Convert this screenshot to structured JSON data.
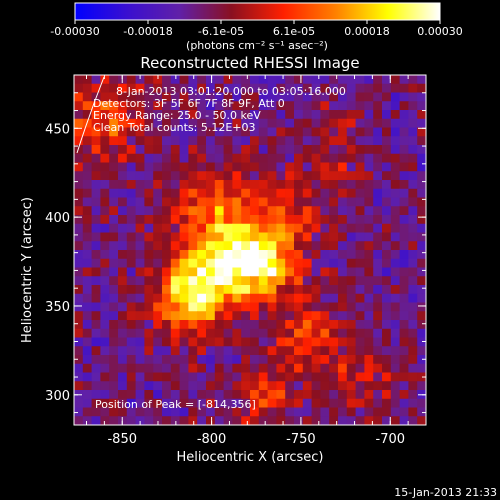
{
  "chart_data": {
    "type": "heatmap",
    "title": "Reconstructed RHESSI Image",
    "xlabel": "Heliocentric X (arcsec)",
    "ylabel": "Heliocentric Y (arcsec)",
    "xlim": [
      -877,
      -680
    ],
    "ylim": [
      283,
      480
    ],
    "x_ticks": [
      "-850",
      "-800",
      "-750",
      "-700"
    ],
    "x_tick_values": [
      -850,
      -800,
      -750,
      -700
    ],
    "y_ticks": [
      "300",
      "350",
      "400",
      "450"
    ],
    "y_tick_values": [
      300,
      350,
      400,
      450
    ],
    "colorbar": {
      "range": [
        -0.0003,
        0.0003
      ],
      "tick_labels": [
        "-0.00030",
        "-0.00018",
        "-6.1e-05",
        "6.1e-05",
        "0.00018",
        "0.00030"
      ],
      "label": "(photons cm⁻² s⁻¹ asec⁻²)",
      "colors": [
        "#0000ff",
        "#3a0fd0",
        "#6020a8",
        "#8a1020",
        "#ff2000",
        "#ff8000",
        "#ffff00",
        "#ffffff"
      ]
    },
    "peak_position": [
      -814,
      356
    ],
    "annotations": [
      "8-Jan-2013 03:01:20.000 to 03:05:16.000",
      "Detectors: 3F 5F 6F 7F 8F 9F, Att 0",
      "Energy Range: 25.0 - 50.0 keV",
      "Clean     Total counts: 5.12E+03"
    ],
    "peak_text": "Position of Peak = [-814,356]"
  },
  "footer": {
    "timestamp": "15-Jan-2013 21:33"
  }
}
